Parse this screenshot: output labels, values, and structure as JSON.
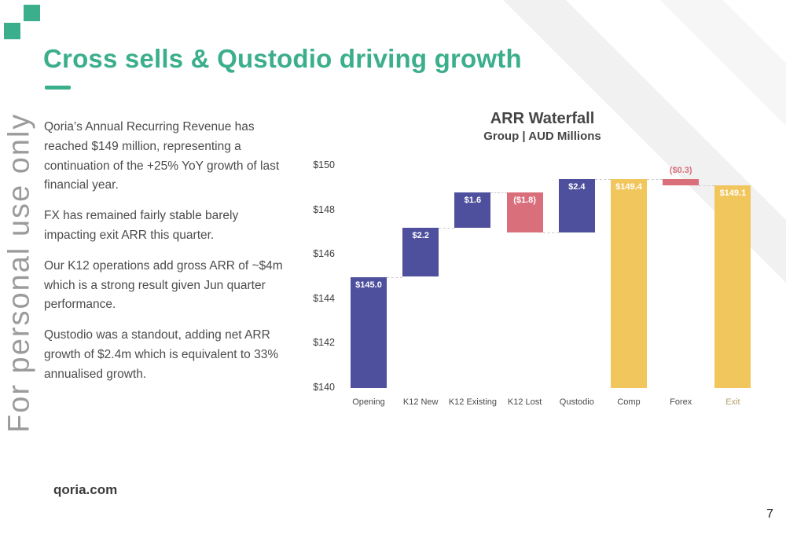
{
  "slide": {
    "title": "Cross sells & Qustodio driving growth",
    "vertical_watermark": "For personal use only",
    "accent_color": "#3BAE8C",
    "paragraphs": [
      "Qoria’s Annual Recurring Revenue has reached $149 million, representing a continuation of the +25% YoY growth of last financial year.",
      "FX has remained fairly stable barely impacting exit ARR this quarter.",
      "Our K12 operations add gross ARR of ~$4m which is a strong result given Jun quarter performance.",
      "Qustodio was a standout, adding net ARR growth of $2.4m which is equivalent to 33% annualised growth."
    ],
    "footer": {
      "website": "qoria.com",
      "page_number": "7"
    }
  },
  "chart_data": {
    "type": "bar",
    "subtype": "waterfall",
    "title": "ARR Waterfall",
    "subtitle": "Group | AUD Millions",
    "ylim": [
      140,
      150
    ],
    "grid": false,
    "legend": false,
    "yticks": [
      {
        "label": "$150",
        "value": 150
      },
      {
        "label": "$148",
        "value": 148
      },
      {
        "label": "$146",
        "value": 146
      },
      {
        "label": "$144",
        "value": 144
      },
      {
        "label": "$142",
        "value": 142
      },
      {
        "label": "$140",
        "value": 140
      }
    ],
    "categories": [
      "Opening",
      "K12 New",
      "K12 Existing",
      "K12 Lost",
      "Qustodio",
      "Comp",
      "Forex",
      "Exit"
    ],
    "colors": {
      "purple": "#4E4F9D",
      "red": "#D96F7B",
      "yellow": "#F1C75D"
    },
    "bars": [
      {
        "category": "Opening",
        "kind": "total",
        "start": 140.0,
        "end": 145.0,
        "value": 145.0,
        "value_label": "$145.0",
        "color": "purple",
        "label_pos": "inside"
      },
      {
        "category": "K12 New",
        "kind": "increase",
        "start": 145.0,
        "end": 147.2,
        "value": 2.2,
        "value_label": "$2.2",
        "color": "purple",
        "label_pos": "inside"
      },
      {
        "category": "K12 Existing",
        "kind": "increase",
        "start": 147.2,
        "end": 148.8,
        "value": 1.6,
        "value_label": "$1.6",
        "color": "purple",
        "label_pos": "inside"
      },
      {
        "category": "K12 Lost",
        "kind": "decrease",
        "start": 148.8,
        "end": 147.0,
        "value": -1.8,
        "value_label": "($1.8)",
        "color": "red",
        "label_pos": "inside"
      },
      {
        "category": "Qustodio",
        "kind": "increase",
        "start": 147.0,
        "end": 149.4,
        "value": 2.4,
        "value_label": "$2.4",
        "color": "purple",
        "label_pos": "inside"
      },
      {
        "category": "Comp",
        "kind": "total",
        "start": 140.0,
        "end": 149.4,
        "value": 149.4,
        "value_label": "$149.4",
        "color": "yellow",
        "label_pos": "inside"
      },
      {
        "category": "Forex",
        "kind": "decrease",
        "start": 149.4,
        "end": 149.1,
        "value": -0.3,
        "value_label": "($0.3)",
        "color": "red",
        "label_pos": "above"
      },
      {
        "category": "Exit",
        "kind": "total",
        "start": 140.0,
        "end": 149.1,
        "value": 149.1,
        "value_label": "$149.1",
        "color": "yellow",
        "label_pos": "inside",
        "axis_label_color": "#b3a26a"
      }
    ]
  }
}
